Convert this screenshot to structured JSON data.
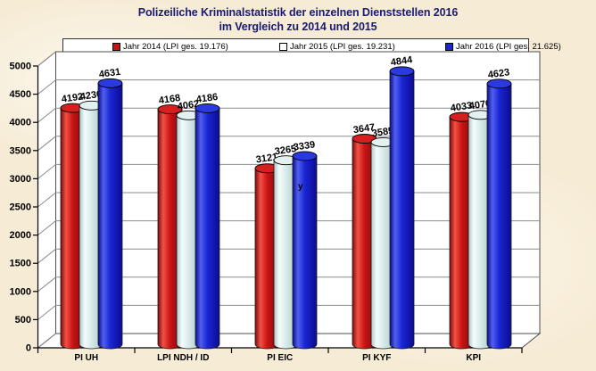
{
  "title": {
    "line1": "Polizeiliche Kriminalstatistik der einzelnen Dienststellen 2016",
    "line2": "im Vergleich zu 2014 und 2015"
  },
  "legend": {
    "items": [
      {
        "label": "Jahr 2014 (LPI ges. 19.176)",
        "marker_color": "#c81414",
        "marker_filled": true
      },
      {
        "label": "Jahr 2015 (LPI ges. 19.231)",
        "marker_color": "#ffffff",
        "marker_filled": false
      },
      {
        "label": "Jahr 2016 (LPI ges. 21.625)",
        "marker_color": "#1a26d4",
        "marker_filled": true
      }
    ]
  },
  "chart_data": {
    "type": "bar",
    "style": "3d-cylinder",
    "title": "Polizeiliche Kriminalstatistik der einzelnen Dienststellen 2016 im Vergleich zu 2014 und 2015",
    "categories": [
      "PI UH",
      "LPI NDH / ID",
      "PI EIC",
      "PI KYF",
      "KPI"
    ],
    "series": [
      {
        "name": "Jahr 2014 (LPI ges. 19.176)",
        "values": [
          4192,
          4168,
          3121,
          3647,
          4033
        ],
        "base": "#c81414",
        "light": "#f25244",
        "dark": "#800a0a",
        "top": "#d62020"
      },
      {
        "name": "Jahr 2015 (LPI ges. 19.231)",
        "values": [
          4236,
          4062,
          3265,
          3585,
          4070
        ],
        "base": "#d8eaea",
        "light": "#f5fcfc",
        "dark": "#a9c7c9",
        "top": "#e3f1f1"
      },
      {
        "name": "Jahr 2016 (LPI ges. 21.625)",
        "values": [
          4631,
          4186,
          3339,
          4844,
          4623
        ],
        "base": "#1a26d4",
        "light": "#5060f0",
        "dark": "#0c0c90",
        "top": "#2a3ae0"
      }
    ],
    "xlabel": "",
    "ylabel": "",
    "ylim": [
      0,
      5000
    ],
    "ytick_step": 500,
    "yticks": [
      0,
      500,
      1000,
      1500,
      2000,
      2500,
      3000,
      3500,
      4000,
      4500,
      5000
    ],
    "grid": true,
    "legend_position": "top",
    "data_labels": true,
    "stray_annotation": {
      "text": "y",
      "x": 334,
      "y": 212
    }
  },
  "colors": {
    "background": "#f6ecd6",
    "title_text": "#1a1a70",
    "plot_wall": "#ffffff",
    "wall_border": "#4d4d4d",
    "gridline": "#8c8c8c",
    "axis": "#000000"
  }
}
